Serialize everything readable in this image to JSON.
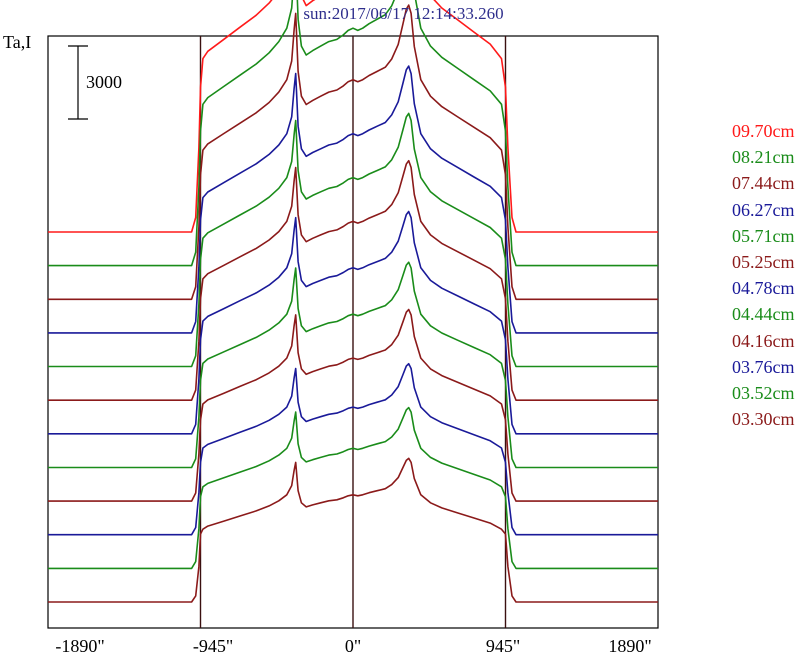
{
  "chart_data": {
    "type": "line",
    "title": "sun:2017/06/17 12:14:33.260",
    "ylabel": "Ta,I",
    "scale_bar_label": "3000",
    "scale_bar_value": 3000,
    "xlabel": "",
    "xlim": [
      -1890,
      1890
    ],
    "x_ticks": [
      "-1890\"",
      "-945\"",
      "0\"",
      "945\"",
      "1890\""
    ],
    "x_tick_values": [
      -1890,
      -945,
      0,
      945,
      1890
    ],
    "vertical_lines": [
      -945,
      0,
      945
    ],
    "grid": false,
    "legend_position": "right",
    "profile": {
      "x": [
        -1890,
        -1000,
        -975,
        -955,
        -945,
        -930,
        -900,
        -800,
        -700,
        -600,
        -520,
        -460,
        -410,
        -380,
        -365,
        -355,
        -340,
        -320,
        -290,
        -250,
        -200,
        -150,
        -100,
        -60,
        -30,
        0,
        30,
        60,
        100,
        150,
        200,
        240,
        280,
        310,
        330,
        345,
        360,
        380,
        420,
        480,
        550,
        650,
        750,
        850,
        920,
        945,
        960,
        985,
        1010,
        1890
      ],
      "y": [
        0,
        0,
        0.6,
        3.5,
        6.0,
        7.2,
        7.5,
        8.0,
        8.5,
        9.0,
        9.5,
        10.0,
        10.6,
        11.5,
        13.0,
        13.8,
        11.0,
        9.8,
        9.4,
        9.6,
        9.8,
        10.0,
        10.1,
        10.3,
        10.5,
        10.6,
        10.5,
        10.6,
        10.8,
        11.0,
        11.2,
        11.6,
        12.3,
        13.3,
        14.0,
        14.2,
        13.8,
        12.2,
        10.6,
        9.8,
        9.3,
        8.8,
        8.3,
        7.8,
        7.2,
        6.0,
        3.5,
        0.6,
        0,
        0
      ]
    },
    "series": [
      {
        "name": "09.70cm",
        "color": "#ff1a1a",
        "baseline_rel": 1.0,
        "amplitude_rel": 1.0,
        "limb_spike": 0.0
      },
      {
        "name": "08.21cm",
        "color": "#1a8c1a",
        "baseline_rel": 1.0,
        "amplitude_rel": 0.93,
        "limb_spike": 0.0
      },
      {
        "name": "07.44cm",
        "color": "#8b1a1a",
        "baseline_rel": 1.0,
        "amplitude_rel": 0.86,
        "limb_spike": 0.0
      },
      {
        "name": "06.27cm",
        "color": "#1a1a99",
        "baseline_rel": 0.96,
        "amplitude_rel": 0.78,
        "limb_spike": 0.0
      },
      {
        "name": "05.71cm",
        "color": "#1a8c1a",
        "baseline_rel": 0.94,
        "amplitude_rel": 0.74,
        "limb_spike": 0.0
      },
      {
        "name": "05.25cm",
        "color": "#8b1a1a",
        "baseline_rel": 0.92,
        "amplitude_rel": 0.7,
        "limb_spike": 0.0
      },
      {
        "name": "04.78cm",
        "color": "#1a1a99",
        "baseline_rel": 0.9,
        "amplitude_rel": 0.65,
        "limb_spike": 0.0
      },
      {
        "name": "04.44cm",
        "color": "#1a8c1a",
        "baseline_rel": 0.88,
        "amplitude_rel": 0.6,
        "limb_spike": 0.0
      },
      {
        "name": "04.16cm",
        "color": "#8b1a1a",
        "baseline_rel": 0.86,
        "amplitude_rel": 0.56,
        "limb_spike": 0.0
      },
      {
        "name": "03.76cm",
        "color": "#1a1a99",
        "baseline_rel": 0.84,
        "amplitude_rel": 0.5,
        "limb_spike": 0.0
      },
      {
        "name": "03.52cm",
        "color": "#1a8c1a",
        "baseline_rel": 0.82,
        "amplitude_rel": 0.47,
        "limb_spike": 0.15
      },
      {
        "name": "03.30cm",
        "color": "#8b1a1a",
        "baseline_rel": 0.8,
        "amplitude_rel": 0.42,
        "limb_spike": 0.3
      }
    ]
  }
}
